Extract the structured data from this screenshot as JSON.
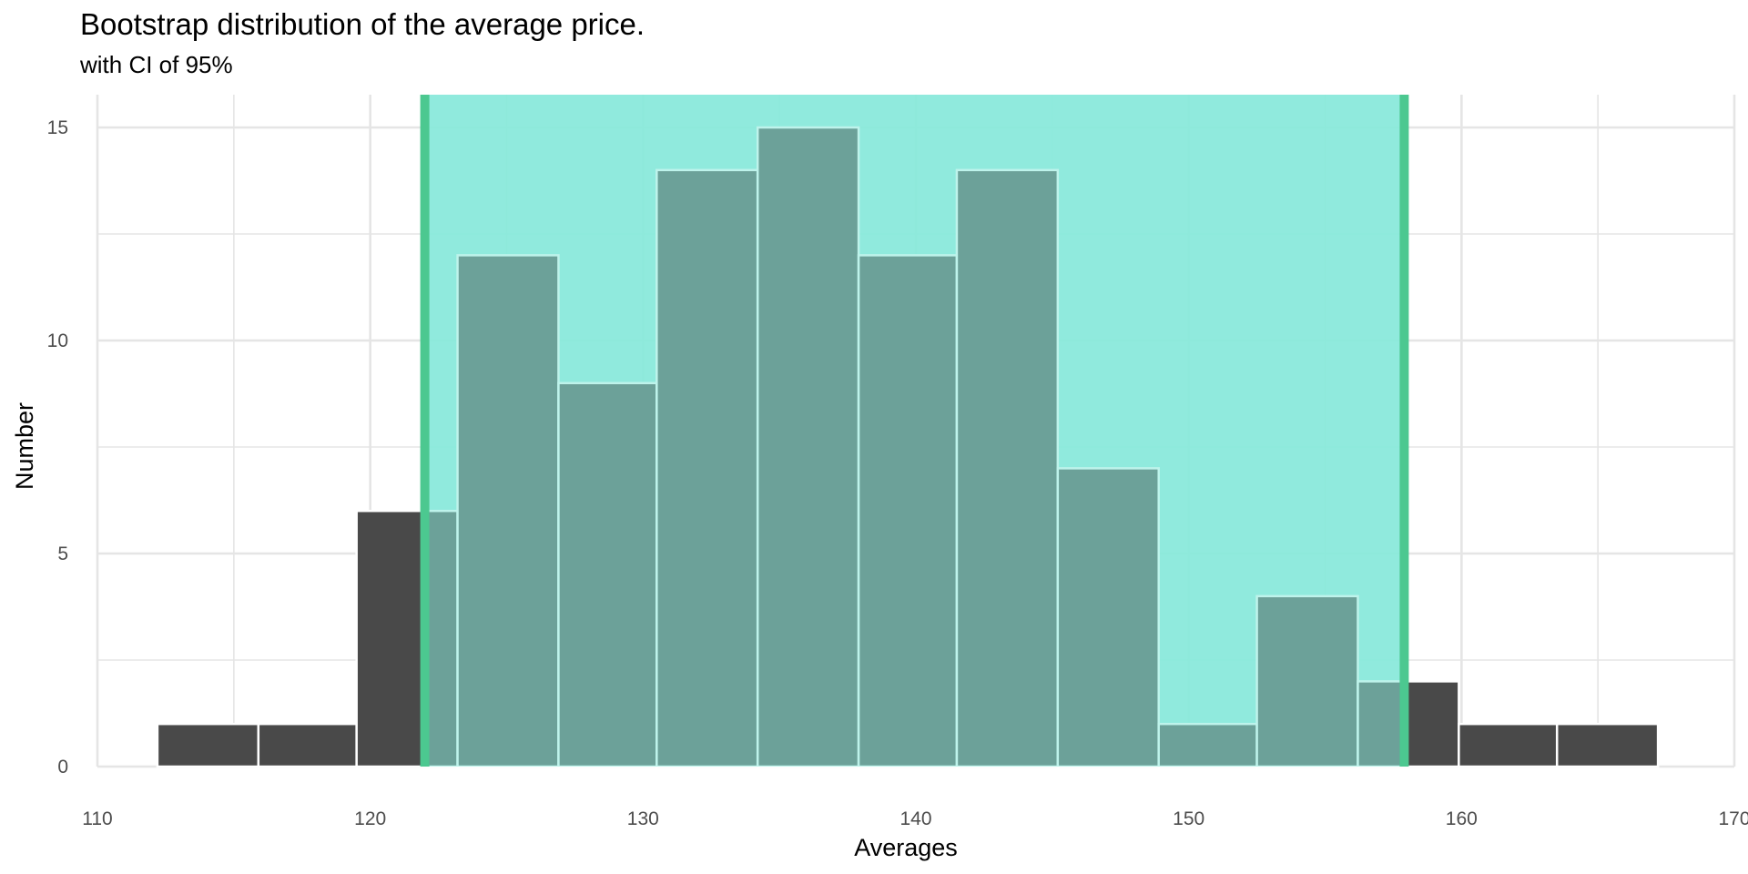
{
  "chart_data": {
    "type": "bar",
    "title": "Bootstrap distribution of the average price.",
    "subtitle": "with CI of 95%",
    "xlabel": "Averages",
    "ylabel": "Number",
    "xlim": [
      110,
      170
    ],
    "ylim": [
      0,
      15
    ],
    "x_ticks": [
      "110",
      "120",
      "130",
      "140",
      "150",
      "160",
      "170"
    ],
    "y_ticks": [
      "0",
      "5",
      "10",
      "15"
    ],
    "grid": true,
    "bin_width": 3.67,
    "bins": [
      {
        "x0": 112.2,
        "x1": 115.9,
        "count": 1
      },
      {
        "x0": 115.9,
        "x1": 119.5,
        "count": 1
      },
      {
        "x0": 119.5,
        "x1": 123.2,
        "count": 6
      },
      {
        "x0": 123.2,
        "x1": 126.9,
        "count": 12
      },
      {
        "x0": 126.9,
        "x1": 130.5,
        "count": 9
      },
      {
        "x0": 130.5,
        "x1": 134.2,
        "count": 14
      },
      {
        "x0": 134.2,
        "x1": 137.9,
        "count": 15
      },
      {
        "x0": 137.9,
        "x1": 141.5,
        "count": 12
      },
      {
        "x0": 141.5,
        "x1": 145.2,
        "count": 14
      },
      {
        "x0": 145.2,
        "x1": 148.9,
        "count": 7
      },
      {
        "x0": 148.9,
        "x1": 152.5,
        "count": 1
      },
      {
        "x0": 152.5,
        "x1": 156.2,
        "count": 4
      },
      {
        "x0": 156.2,
        "x1": 159.9,
        "count": 2
      },
      {
        "x0": 159.9,
        "x1": 163.5,
        "count": 1
      },
      {
        "x0": 163.5,
        "x1": 167.2,
        "count": 1
      }
    ],
    "ci": {
      "level": "95%",
      "lower": 122.0,
      "upper": 157.9
    },
    "colors": {
      "bar_outside": "#494949",
      "bar_inside": "#3fa08f",
      "bar_outline_outside": "#ffffff",
      "bar_outline_inside": "#a8efe2",
      "ci_fill": "#88e9db",
      "ci_line": "#4cc890",
      "grid": "#e5e5e5"
    }
  }
}
